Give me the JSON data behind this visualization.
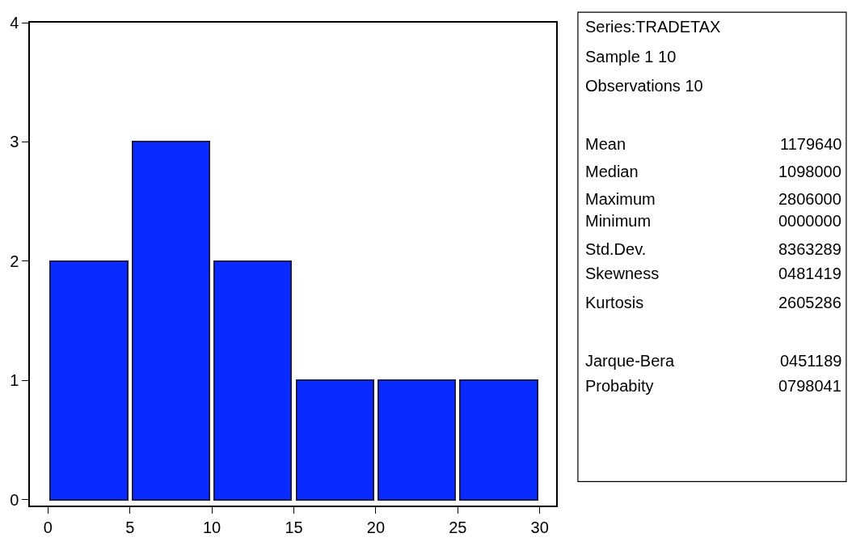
{
  "chart_data": {
    "type": "histogram",
    "bins": [
      0,
      5,
      10,
      15,
      20,
      25,
      30
    ],
    "values": [
      2,
      3,
      2,
      1,
      1,
      1
    ],
    "color": "#0a2bff",
    "xlim": [
      -1.1,
      31
    ],
    "xticks": [
      0,
      5,
      10,
      15,
      20,
      25,
      30
    ],
    "ylim": [
      -0.05,
      4
    ],
    "yticks": [
      0,
      1,
      2,
      3,
      4
    ],
    "annotations": [
      "Series:TRADETAX",
      "Sample 1 10",
      "Observations 10",
      "Mean",
      "1179640",
      "Median",
      "1098000",
      "Maximum",
      "2806000",
      "Minimum",
      "0000000",
      "Std.Dev.",
      "8363289",
      "Skewness",
      "0481419",
      "Kurtosis",
      "2605286",
      "Jarque-Bera",
      "0451189",
      "Probabity",
      "0798041"
    ]
  }
}
